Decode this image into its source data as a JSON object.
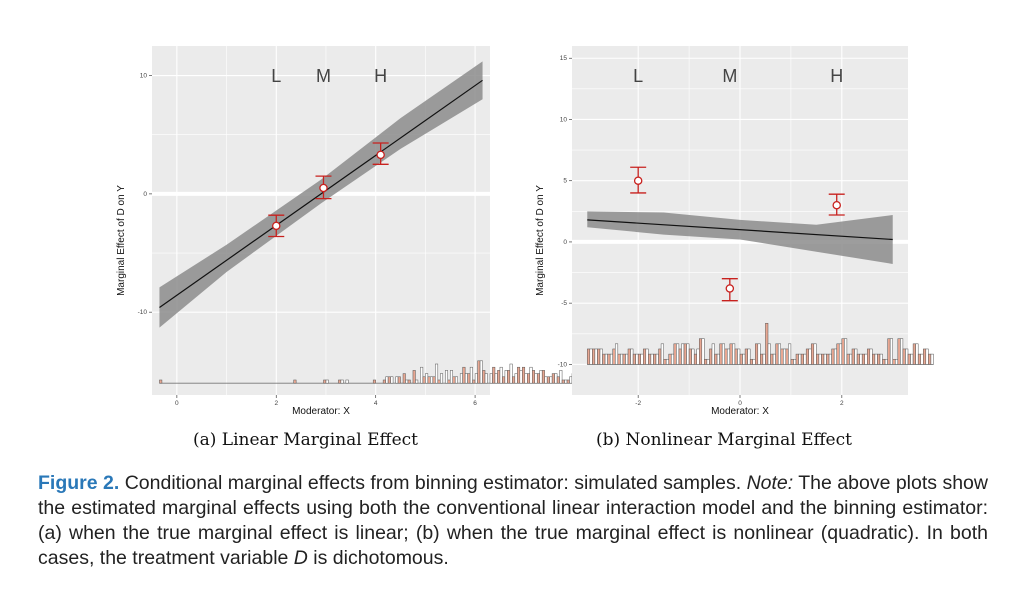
{
  "colors": {
    "panel": "#ebebeb",
    "grid": "#ffffff",
    "band": "#8c8c8c",
    "errorbar": "#c8211e",
    "histA": "#e8a792",
    "histB": "#ffffff",
    "caption_label": "#2a78b8"
  },
  "figure": {
    "caption": {
      "label": "Figure 2.",
      "title": " Conditional marginal effects from binning estimator: simulated samples. ",
      "note_label": "Note:",
      "text": " The above plots show the estimated marginal effects using both the conventional linear interaction model and the binning estimator: (a) when the true marginal effect is linear; (b) when the true marginal effect is nonlinear (quadratic). In both cases, the treatment variable ",
      "var": "D",
      "end": " is dichotomous."
    }
  },
  "chart_data": [
    {
      "type": "line",
      "subcaption": "(a) Linear Marginal Effect",
      "xlabel": "Moderator: X",
      "ylabel": "Marginal Effect of D on Y",
      "xlim": [
        -0.5,
        6.3
      ],
      "ylim": [
        -17,
        12.5
      ],
      "xticks": [
        0,
        2,
        4,
        6
      ],
      "yticks": [
        -10,
        0,
        10
      ],
      "bin_labels": [
        {
          "text": "L",
          "x": 2.0
        },
        {
          "text": "M",
          "x": 2.95
        },
        {
          "text": "H",
          "x": 4.1
        }
      ],
      "linear_fit": {
        "x": [
          -0.35,
          6.15
        ],
        "y": [
          -9.6,
          9.6
        ]
      },
      "ci_band": {
        "x": [
          -0.35,
          1.0,
          2.9,
          4.5,
          6.15
        ],
        "lower": [
          -11.3,
          -6.6,
          -0.8,
          3.8,
          8.0
        ],
        "upper": [
          -7.9,
          -4.3,
          1.2,
          6.4,
          11.2
        ]
      },
      "bin_estimates": [
        {
          "x": 2.0,
          "y": -2.7,
          "lo": -3.6,
          "hi": -1.8
        },
        {
          "x": 2.95,
          "y": 0.5,
          "lo": -0.4,
          "hi": 1.5
        },
        {
          "x": 4.1,
          "y": 3.3,
          "lo": 2.5,
          "hi": 4.3
        }
      ],
      "histogram": {
        "base": -16.0,
        "scale": 0.27,
        "start": -0.35,
        "width": 0.1,
        "a": [
          1,
          0,
          0,
          0,
          0,
          0,
          0,
          0,
          0,
          0,
          0,
          0,
          0,
          0,
          0,
          0,
          0,
          0,
          0,
          0,
          0,
          0,
          0,
          0,
          0,
          0,
          0,
          1,
          0,
          0,
          0,
          0,
          0,
          1,
          0,
          0,
          1,
          0,
          0,
          0,
          0,
          0,
          0,
          1,
          0,
          1,
          2,
          0,
          2,
          3,
          1,
          4,
          0,
          2,
          2,
          2,
          1,
          0,
          1,
          2,
          0,
          5,
          3,
          1,
          7,
          4,
          0,
          5,
          4,
          2,
          4,
          2,
          5,
          5,
          3,
          4,
          3,
          4,
          2,
          3,
          2,
          1,
          1,
          3,
          3,
          1,
          1,
          2,
          1,
          2,
          1,
          1,
          1,
          0,
          0,
          0,
          0,
          0,
          0,
          0,
          0,
          0,
          0,
          0,
          0,
          0,
          0,
          0,
          0,
          0,
          0,
          0,
          0,
          0,
          0,
          1
        ],
        "b": [
          0,
          0,
          0,
          0,
          0,
          0,
          0,
          0,
          0,
          0,
          0,
          0,
          0,
          0,
          0,
          0,
          0,
          0,
          0,
          0,
          0,
          0,
          0,
          0,
          0,
          0,
          0,
          0,
          0,
          0,
          0,
          0,
          0,
          1,
          0,
          0,
          1,
          1,
          0,
          0,
          0,
          0,
          0,
          0,
          0,
          2,
          2,
          2,
          0,
          1,
          0,
          1,
          5,
          3,
          2,
          6,
          3,
          4,
          4,
          2,
          3,
          3,
          5,
          3,
          7,
          3,
          3,
          3,
          5,
          4,
          6,
          3,
          4,
          3,
          5,
          3,
          4,
          2,
          2,
          3,
          4,
          1,
          2,
          4,
          2,
          2,
          4,
          2,
          2,
          1,
          2,
          1,
          0,
          0,
          0,
          0,
          0,
          0,
          0,
          0,
          0,
          0,
          0,
          0,
          0,
          0,
          0,
          0,
          0,
          0,
          0,
          0,
          0,
          0,
          0,
          1
        ]
      }
    },
    {
      "type": "line",
      "subcaption": "(b) Nonlinear Marginal Effect",
      "xlabel": "Moderator: X",
      "ylabel": "Marginal Effect of D on Y",
      "xlim": [
        -3.3,
        3.3
      ],
      "ylim": [
        -12.5,
        16
      ],
      "xticks": [
        -2,
        0,
        2
      ],
      "yticks": [
        -10,
        -5,
        0,
        5,
        10,
        15
      ],
      "bin_labels": [
        {
          "text": "L",
          "x": -2.0
        },
        {
          "text": "M",
          "x": -0.2
        },
        {
          "text": "H",
          "x": 1.9
        }
      ],
      "linear_fit": {
        "x": [
          -3.0,
          3.0
        ],
        "y": [
          1.8,
          0.2
        ]
      },
      "ci_band": {
        "x": [
          -3.0,
          -1.5,
          0.0,
          1.5,
          3.0
        ],
        "lower": [
          1.2,
          0.6,
          0.2,
          -0.8,
          -1.8
        ],
        "upper": [
          2.5,
          2.4,
          1.8,
          1.4,
          2.2
        ]
      },
      "bin_estimates": [
        {
          "x": -2.0,
          "y": 5.0,
          "lo": 4.0,
          "hi": 6.1
        },
        {
          "x": -0.2,
          "y": -3.8,
          "lo": -4.8,
          "hi": -3.0
        },
        {
          "x": 1.9,
          "y": 3.0,
          "lo": 2.2,
          "hi": 3.9
        }
      ],
      "histogram": {
        "base": -10.0,
        "scale": 0.42,
        "start": -3.0,
        "width": 0.1,
        "a": [
          3,
          3,
          3,
          2,
          2,
          3,
          2,
          2,
          3,
          2,
          2,
          3,
          2,
          2,
          3,
          1,
          2,
          4,
          3,
          4,
          3,
          2,
          5,
          1,
          3,
          2,
          4,
          3,
          4,
          3,
          2,
          3,
          1,
          4,
          2,
          8,
          2,
          4,
          3,
          3,
          1,
          2,
          2,
          3,
          4,
          2,
          2,
          2,
          3,
          4,
          5,
          2,
          3,
          2,
          2,
          3,
          2,
          2,
          1,
          5,
          1,
          5,
          3,
          2,
          4,
          2,
          3,
          2
        ],
        "b": [
          3,
          3,
          3,
          2,
          2,
          4,
          2,
          2,
          3,
          2,
          2,
          3,
          2,
          2,
          4,
          1,
          2,
          4,
          4,
          4,
          3,
          3,
          5,
          1,
          4,
          2,
          4,
          3,
          4,
          3,
          2,
          3,
          1,
          4,
          2,
          4,
          2,
          4,
          3,
          4,
          1,
          2,
          2,
          3,
          4,
          2,
          2,
          2,
          3,
          4,
          5,
          2,
          3,
          2,
          2,
          3,
          2,
          2,
          1,
          5,
          1,
          5,
          3,
          2,
          4,
          2,
          3,
          2
        ]
      }
    }
  ]
}
